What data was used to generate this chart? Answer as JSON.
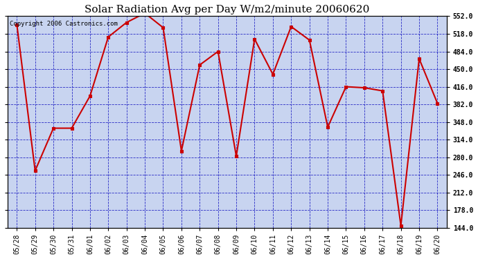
{
  "title": "Solar Radiation Avg per Day W/m2/minute 20060620",
  "copyright_text": "Copyright 2006 Castronics.com",
  "dates": [
    "05/28",
    "05/29",
    "05/30",
    "05/31",
    "06/01",
    "06/02",
    "06/03",
    "06/04",
    "06/05",
    "06/06",
    "06/07",
    "06/08",
    "06/09",
    "06/10",
    "06/11",
    "06/12",
    "06/13",
    "06/14",
    "06/15",
    "06/16",
    "06/17",
    "06/18",
    "06/19",
    "06/20"
  ],
  "values": [
    536,
    254,
    336,
    336,
    398,
    512,
    540,
    558,
    530,
    292,
    458,
    484,
    282,
    508,
    440,
    532,
    506,
    338,
    416,
    414,
    408,
    148,
    470,
    384
  ],
  "line_color": "#cc0000",
  "marker_color": "#cc0000",
  "fig_bg_color": "#ffffff",
  "plot_bg_color": "#c8d4f0",
  "grid_color": "#0000bb",
  "title_fontsize": 11,
  "copyright_fontsize": 6.5,
  "tick_fontsize": 7,
  "ylim_min": 144.0,
  "ylim_max": 552.0,
  "yticks": [
    144.0,
    178.0,
    212.0,
    246.0,
    280.0,
    314.0,
    348.0,
    382.0,
    416.0,
    450.0,
    484.0,
    518.0,
    552.0
  ]
}
